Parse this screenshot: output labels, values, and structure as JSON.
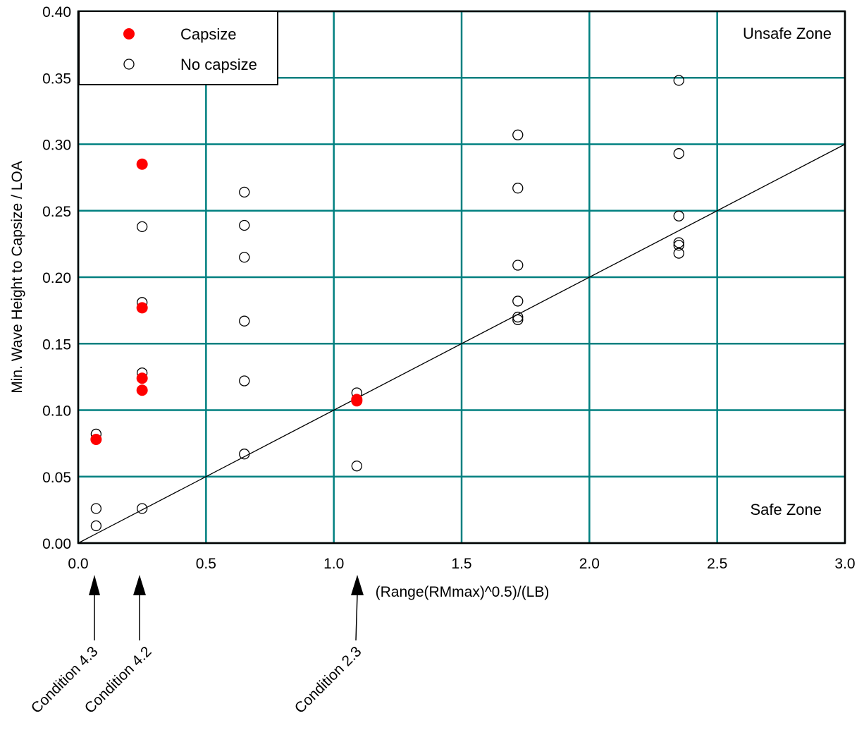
{
  "chart_data": {
    "type": "scatter",
    "title": "",
    "xlabel": "(Range(RMmax)^0.5)/(LB)",
    "ylabel": "Min. Wave Height to Capsize / LOA",
    "xlim": [
      0,
      3.0
    ],
    "ylim": [
      0,
      0.4
    ],
    "x_ticks": [
      "0.0",
      "0.5",
      "1.0",
      "1.5",
      "2.0",
      "2.5",
      "3.0"
    ],
    "y_ticks": [
      "0.00",
      "0.05",
      "0.10",
      "0.15",
      "0.20",
      "0.25",
      "0.30",
      "0.35",
      "0.40"
    ],
    "grid": true,
    "grid_color": "#008080",
    "legend_position": "top-left",
    "series": [
      {
        "name": "Capsize",
        "marker": "filled-circle",
        "color": "#ff0000",
        "points": [
          {
            "x": 0.07,
            "y": 0.078
          },
          {
            "x": 0.25,
            "y": 0.285
          },
          {
            "x": 0.25,
            "y": 0.177
          },
          {
            "x": 0.25,
            "y": 0.124
          },
          {
            "x": 0.25,
            "y": 0.115
          },
          {
            "x": 1.09,
            "y": 0.108
          },
          {
            "x": 1.09,
            "y": 0.107
          }
        ]
      },
      {
        "name": "No capsize",
        "marker": "open-circle",
        "color": "#000000",
        "points": [
          {
            "x": 0.07,
            "y": 0.082
          },
          {
            "x": 0.07,
            "y": 0.026
          },
          {
            "x": 0.07,
            "y": 0.013
          },
          {
            "x": 0.25,
            "y": 0.238
          },
          {
            "x": 0.25,
            "y": 0.181
          },
          {
            "x": 0.25,
            "y": 0.128
          },
          {
            "x": 0.25,
            "y": 0.026
          },
          {
            "x": 0.65,
            "y": 0.264
          },
          {
            "x": 0.65,
            "y": 0.239
          },
          {
            "x": 0.65,
            "y": 0.215
          },
          {
            "x": 0.65,
            "y": 0.167
          },
          {
            "x": 0.65,
            "y": 0.122
          },
          {
            "x": 0.65,
            "y": 0.067
          },
          {
            "x": 1.09,
            "y": 0.113
          },
          {
            "x": 1.09,
            "y": 0.058
          },
          {
            "x": 1.72,
            "y": 0.307
          },
          {
            "x": 1.72,
            "y": 0.267
          },
          {
            "x": 1.72,
            "y": 0.209
          },
          {
            "x": 1.72,
            "y": 0.182
          },
          {
            "x": 1.72,
            "y": 0.17
          },
          {
            "x": 1.72,
            "y": 0.168
          },
          {
            "x": 2.35,
            "y": 0.348
          },
          {
            "x": 2.35,
            "y": 0.293
          },
          {
            "x": 2.35,
            "y": 0.246
          },
          {
            "x": 2.35,
            "y": 0.226
          },
          {
            "x": 2.35,
            "y": 0.224
          },
          {
            "x": 2.35,
            "y": 0.218
          }
        ]
      }
    ],
    "reference_line": {
      "from": [
        0,
        0
      ],
      "to": [
        3.0,
        0.3
      ]
    },
    "annotations": [
      {
        "text": "Unsafe Zone",
        "placement": "top-right"
      },
      {
        "text": "Safe Zone",
        "placement": "bottom-right"
      }
    ],
    "arrow_labels": [
      {
        "text": "Condition 4.3",
        "x": 0.07
      },
      {
        "text": "Condition 4.2",
        "x": 0.25
      },
      {
        "text": "Condition 2.3",
        "x": 1.09
      }
    ]
  }
}
